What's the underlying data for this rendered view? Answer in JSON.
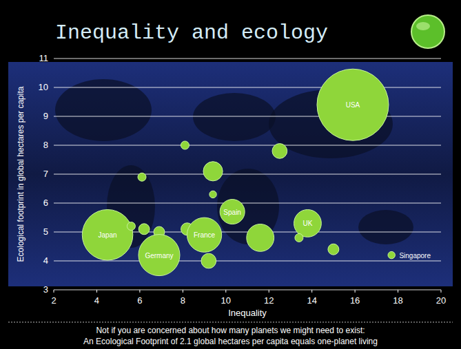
{
  "chart_data": {
    "type": "scatter",
    "title": "Inequality and ecology",
    "x_label": "Inequality",
    "y_label": "Ecological footprint in global hectares per capita",
    "footnote": [
      "Not if you are concerned about how many planets we might need to exist:",
      "An Ecological Footprint of 2.1 global hectares per capita equals one-planet living"
    ],
    "x": [
      4.5,
      5.6,
      6.2,
      6.1,
      6.9,
      6.9,
      8.1,
      8.2,
      9.0,
      9.2,
      9.4,
      9.4,
      10.3,
      11.6,
      12.5,
      13.8,
      13.4,
      15.0,
      15.9,
      17.7
    ],
    "values": [
      4.9,
      5.2,
      5.1,
      6.9,
      5.0,
      4.2,
      8.0,
      5.1,
      4.9,
      4.0,
      7.1,
      6.3,
      5.7,
      4.8,
      7.8,
      5.3,
      4.8,
      4.4,
      9.4,
      4.2
    ],
    "sizes": [
      150,
      4,
      7,
      4,
      7,
      100,
      4,
      9,
      70,
      13,
      22,
      3,
      36,
      44,
      13,
      44,
      4,
      7,
      300,
      3
    ],
    "labels": [
      "Japan",
      null,
      null,
      null,
      null,
      "Germany",
      null,
      null,
      "France",
      null,
      null,
      null,
      "Spain",
      null,
      null,
      "UK",
      null,
      null,
      "USA",
      "Singapore"
    ],
    "color": "#8fd63a",
    "xlim": [
      2,
      20
    ],
    "xticks": [
      2,
      4,
      6,
      8,
      10,
      12,
      14,
      16,
      18,
      20
    ],
    "ylim": [
      3,
      11
    ],
    "yticks": [
      3,
      4,
      5,
      6,
      7,
      8,
      9,
      10,
      11
    ],
    "grid": "y"
  }
}
